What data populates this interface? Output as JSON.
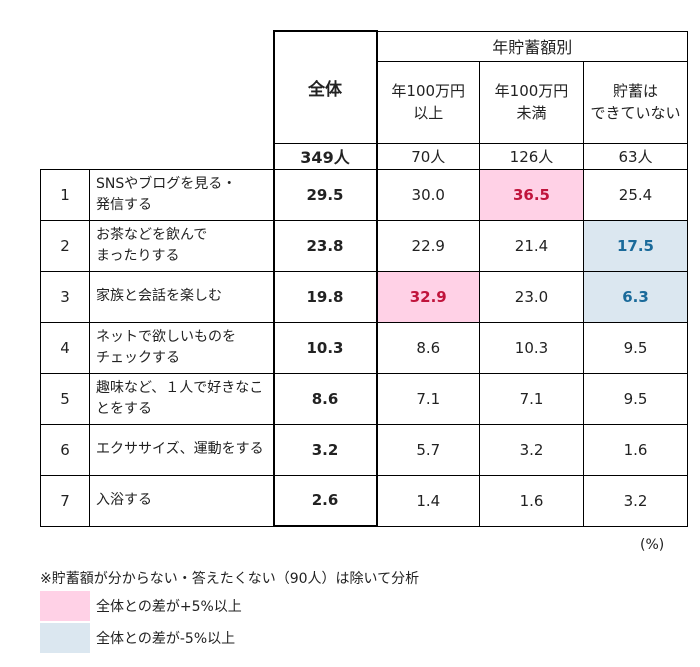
{
  "header": {
    "group_title": "年貯蓄額別",
    "total_label": "全体",
    "columns": [
      {
        "line1": "年100万円",
        "line2": "以上"
      },
      {
        "line1": "年100万円",
        "line2": "未満"
      },
      {
        "line1": "貯蓄は",
        "line2": "できていない"
      }
    ],
    "counts": {
      "total": "349人",
      "c1": "70人",
      "c2": "126人",
      "c3": "63人"
    }
  },
  "rows": [
    {
      "rank": "1",
      "label1": "SNSやブログを見る・",
      "label2": "発信する",
      "total": "29.5",
      "c1": "30.0",
      "c2": "36.5",
      "c3": "25.4"
    },
    {
      "rank": "2",
      "label1": "お茶などを飲んで",
      "label2": "まったりする",
      "total": "23.8",
      "c1": "22.9",
      "c2": "21.4",
      "c3": "17.5"
    },
    {
      "rank": "3",
      "label1": "家族と会話を楽しむ",
      "label2": "",
      "total": "19.8",
      "c1": "32.9",
      "c2": "23.0",
      "c3": "6.3"
    },
    {
      "rank": "4",
      "label1": "ネットで欲しいものを",
      "label2": "チェックする",
      "total": "10.3",
      "c1": "8.6",
      "c2": "10.3",
      "c3": "9.5"
    },
    {
      "rank": "5",
      "label1": "趣味など、１人で好きなこ",
      "label2": "とをする",
      "total": "8.6",
      "c1": "7.1",
      "c2": "7.1",
      "c3": "9.5"
    },
    {
      "rank": "6",
      "label1": "エクササイズ、運動をする",
      "label2": "",
      "total": "3.2",
      "c1": "5.7",
      "c2": "3.2",
      "c3": "1.6"
    },
    {
      "rank": "7",
      "label1": "入浴する",
      "label2": "",
      "total": "2.6",
      "c1": "1.4",
      "c2": "1.6",
      "c3": "3.2"
    }
  ],
  "unit": "(%)",
  "note": "※貯蓄額が分からない・答えたくない（90人）は除いて分析",
  "legend": [
    {
      "color": "#ffd1e6",
      "label": "全体との差が+5%以上"
    },
    {
      "color": "#dbe7f0",
      "label": "全体との差が-5%以上"
    }
  ]
}
